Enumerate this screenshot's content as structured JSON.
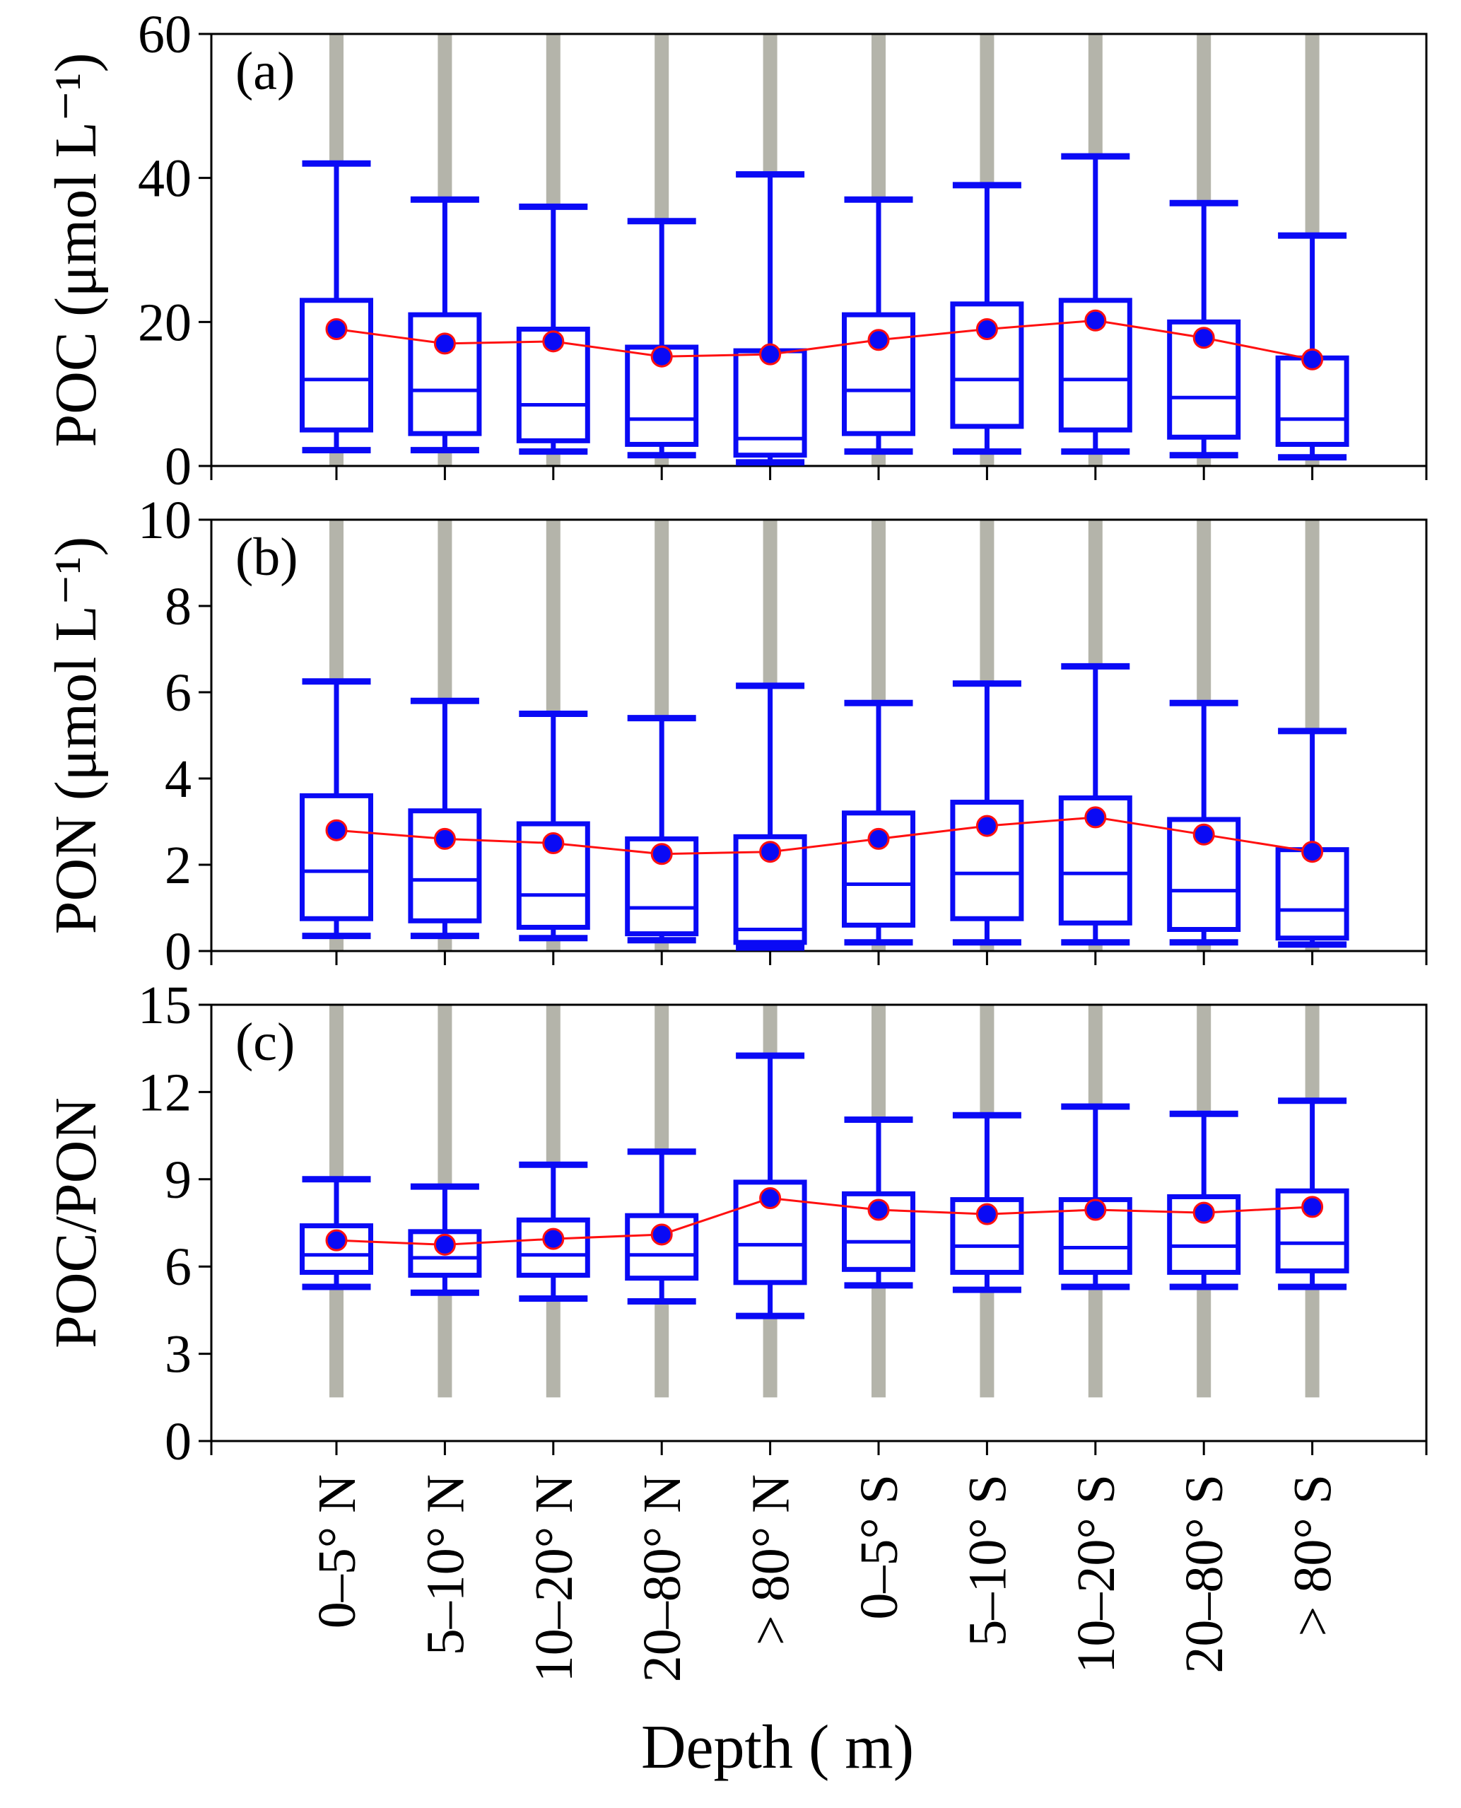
{
  "chart_data": {
    "type": "box",
    "categories": [
      "0–5° N",
      "5–10° N",
      "10–20° N",
      "20–80° N",
      "> 80° N",
      "0–5° S",
      "5–10° S",
      "10–20° S",
      "20–80° S",
      "> 80° S"
    ],
    "xlabel": "Depth ( m)",
    "colors": {
      "box": "#0a0af5",
      "mean_line": "#ff1010",
      "mean_fill": "#0a0af5",
      "outliers": "#b4b4aa"
    },
    "panels": [
      {
        "label": "(a)",
        "ylabel": "POC (μmol L⁻¹)",
        "ylim": [
          0,
          60
        ],
        "yticks": [
          "0",
          "20",
          "40",
          "60"
        ],
        "stats": [
          {
            "whisker_low": 2.2,
            "q1": 5,
            "median": 12,
            "q3": 23,
            "whisker_high": 42,
            "mean": 19
          },
          {
            "whisker_low": 2.2,
            "q1": 4.5,
            "median": 10.5,
            "q3": 21,
            "whisker_high": 37,
            "mean": 17
          },
          {
            "whisker_low": 2,
            "q1": 3.5,
            "median": 8.5,
            "q3": 19,
            "whisker_high": 36,
            "mean": 17.3
          },
          {
            "whisker_low": 1.5,
            "q1": 3,
            "median": 6.5,
            "q3": 16.5,
            "whisker_high": 34,
            "mean": 15.2
          },
          {
            "whisker_low": 0.5,
            "q1": 1.5,
            "median": 3.8,
            "q3": 16,
            "whisker_high": 40.5,
            "mean": 15.5
          },
          {
            "whisker_low": 2,
            "q1": 4.5,
            "median": 10.5,
            "q3": 21,
            "whisker_high": 37,
            "mean": 17.5
          },
          {
            "whisker_low": 2,
            "q1": 5.5,
            "median": 12,
            "q3": 22.5,
            "whisker_high": 39,
            "mean": 19
          },
          {
            "whisker_low": 2,
            "q1": 5,
            "median": 12,
            "q3": 23,
            "whisker_high": 43,
            "mean": 20.2
          },
          {
            "whisker_low": 1.5,
            "q1": 4,
            "median": 9.5,
            "q3": 20,
            "whisker_high": 36.5,
            "mean": 17.8
          },
          {
            "whisker_low": 1.2,
            "q1": 3,
            "median": 6.5,
            "q3": 15,
            "whisker_high": 32,
            "mean": 14.8
          }
        ],
        "outlier_range": [
          0,
          60
        ]
      },
      {
        "label": "(b)",
        "ylabel": "PON (μmol L⁻¹)",
        "ylim": [
          0,
          10
        ],
        "yticks": [
          "0",
          "2",
          "4",
          "6",
          "8",
          "10"
        ],
        "stats": [
          {
            "whisker_low": 0.35,
            "q1": 0.75,
            "median": 1.85,
            "q3": 3.6,
            "whisker_high": 6.25,
            "mean": 2.8
          },
          {
            "whisker_low": 0.35,
            "q1": 0.7,
            "median": 1.65,
            "q3": 3.25,
            "whisker_high": 5.8,
            "mean": 2.6
          },
          {
            "whisker_low": 0.3,
            "q1": 0.55,
            "median": 1.3,
            "q3": 2.95,
            "whisker_high": 5.5,
            "mean": 2.5
          },
          {
            "whisker_low": 0.25,
            "q1": 0.4,
            "median": 1.0,
            "q3": 2.6,
            "whisker_high": 5.4,
            "mean": 2.25
          },
          {
            "whisker_low": 0.08,
            "q1": 0.2,
            "median": 0.5,
            "q3": 2.65,
            "whisker_high": 6.15,
            "mean": 2.3
          },
          {
            "whisker_low": 0.2,
            "q1": 0.6,
            "median": 1.55,
            "q3": 3.2,
            "whisker_high": 5.75,
            "mean": 2.6
          },
          {
            "whisker_low": 0.2,
            "q1": 0.75,
            "median": 1.8,
            "q3": 3.45,
            "whisker_high": 6.2,
            "mean": 2.9
          },
          {
            "whisker_low": 0.2,
            "q1": 0.65,
            "median": 1.8,
            "q3": 3.55,
            "whisker_high": 6.6,
            "mean": 3.1
          },
          {
            "whisker_low": 0.2,
            "q1": 0.5,
            "median": 1.4,
            "q3": 3.05,
            "whisker_high": 5.75,
            "mean": 2.7
          },
          {
            "whisker_low": 0.15,
            "q1": 0.3,
            "median": 0.95,
            "q3": 2.35,
            "whisker_high": 5.1,
            "mean": 2.3
          }
        ],
        "outlier_range": [
          0,
          10
        ]
      },
      {
        "label": "(c)",
        "ylabel": "POC/PON",
        "ylim": [
          0,
          15
        ],
        "yticks": [
          "0",
          "3",
          "6",
          "9",
          "12",
          "15"
        ],
        "stats": [
          {
            "whisker_low": 5.3,
            "q1": 5.8,
            "median": 6.4,
            "q3": 7.4,
            "whisker_high": 9.0,
            "mean": 6.9
          },
          {
            "whisker_low": 5.1,
            "q1": 5.7,
            "median": 6.3,
            "q3": 7.2,
            "whisker_high": 8.75,
            "mean": 6.75
          },
          {
            "whisker_low": 4.9,
            "q1": 5.7,
            "median": 6.4,
            "q3": 7.6,
            "whisker_high": 9.5,
            "mean": 6.95
          },
          {
            "whisker_low": 4.8,
            "q1": 5.6,
            "median": 6.4,
            "q3": 7.75,
            "whisker_high": 9.95,
            "mean": 7.1
          },
          {
            "whisker_low": 4.3,
            "q1": 5.45,
            "median": 6.75,
            "q3": 8.9,
            "whisker_high": 13.25,
            "mean": 8.35
          },
          {
            "whisker_low": 5.35,
            "q1": 5.9,
            "median": 6.85,
            "q3": 8.5,
            "whisker_high": 11.05,
            "mean": 7.95
          },
          {
            "whisker_low": 5.2,
            "q1": 5.8,
            "median": 6.7,
            "q3": 8.3,
            "whisker_high": 11.2,
            "mean": 7.8
          },
          {
            "whisker_low": 5.3,
            "q1": 5.8,
            "median": 6.65,
            "q3": 8.3,
            "whisker_high": 11.5,
            "mean": 7.95
          },
          {
            "whisker_low": 5.3,
            "q1": 5.8,
            "median": 6.7,
            "q3": 8.4,
            "whisker_high": 11.25,
            "mean": 7.85
          },
          {
            "whisker_low": 5.3,
            "q1": 5.85,
            "median": 6.8,
            "q3": 8.6,
            "whisker_high": 11.7,
            "mean": 8.05
          }
        ],
        "outlier_range": [
          1.5,
          15
        ]
      }
    ]
  }
}
